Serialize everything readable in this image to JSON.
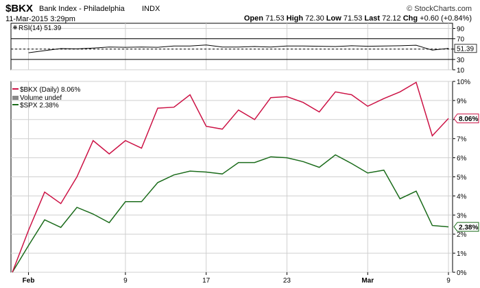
{
  "header": {
    "symbol": "$BKX",
    "name": "Bank Index - Philadelphia",
    "exchange": "INDX",
    "watermark": "© StockCharts.com",
    "datetime": "11-Mar-2015 3:29pm",
    "quote": {
      "open_label": "Open",
      "open": "71.53",
      "high_label": "High",
      "high": "72.30",
      "low_label": "Low",
      "low": "71.53",
      "last_label": "Last",
      "last": "72.12",
      "chg_label": "Chg",
      "chg": "+0.60 (+0.84%)"
    }
  },
  "colors": {
    "bkx": "#cc1144",
    "spx": "#1a6b1a",
    "rsi": "#000000",
    "grid": "#cfcfcf"
  },
  "chart_data": [
    {
      "type": "line",
      "panel": "RSI",
      "legend": "RSI(14) 51.39",
      "ylim": [
        10,
        100
      ],
      "y_ticks": [
        "90",
        "70",
        "50",
        "30",
        "10"
      ],
      "reference_lines": [
        70,
        50,
        30
      ],
      "last_value_label": "51.39",
      "values": [
        43,
        47,
        51,
        50.5,
        52,
        54,
        53.5,
        54,
        53.5,
        56,
        56,
        58,
        54,
        54,
        55,
        54,
        56,
        56,
        55.5,
        55,
        56.5,
        55.5,
        56,
        56.5,
        57.5,
        48,
        51.39
      ],
      "grid": true
    },
    {
      "type": "line",
      "panel": "Performance",
      "y_unit": "percent",
      "ylim": [
        0,
        10
      ],
      "y_ticks": [
        "10%",
        "9%",
        "8%",
        "7%",
        "6%",
        "5%",
        "4%",
        "3%",
        "2%",
        "1%",
        "0%"
      ],
      "x_tick_labels": [
        "Feb",
        "9",
        "17",
        "23",
        "Mar",
        "9"
      ],
      "grid": true,
      "legend_position": "top-left",
      "legend_extra": "Volume undef",
      "series": [
        {
          "name": "$BKX (Daily) 8.06%",
          "color": "#cc1144",
          "last_value_label": "8.06%",
          "values": [
            0.0,
            2.2,
            4.2,
            3.6,
            5.0,
            6.9,
            6.2,
            6.9,
            6.5,
            8.6,
            8.65,
            9.3,
            7.65,
            7.5,
            8.5,
            8.0,
            9.15,
            9.2,
            8.9,
            8.4,
            9.45,
            9.3,
            8.7,
            9.1,
            9.45,
            9.95,
            7.15,
            8.06
          ]
        },
        {
          "name": "$SPX 2.38%",
          "color": "#1a6b1a",
          "last_value_label": "2.38%",
          "values": [
            0.0,
            1.4,
            2.75,
            2.35,
            3.4,
            3.05,
            2.6,
            3.7,
            3.7,
            4.7,
            5.1,
            5.3,
            5.25,
            5.15,
            5.75,
            5.75,
            6.05,
            6.0,
            5.8,
            5.5,
            6.15,
            5.7,
            5.2,
            5.35,
            3.85,
            4.25,
            2.45,
            2.38
          ]
        }
      ]
    }
  ]
}
